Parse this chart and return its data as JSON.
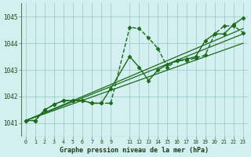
{
  "background_color": "#d4efef",
  "grid_color": "#9ecece",
  "line_color": "#1a6b1a",
  "title": "Graphe pression niveau de la mer (hPa)",
  "xlim": [
    -0.5,
    23.5
  ],
  "ylim": [
    1040.5,
    1045.5
  ],
  "yticks": [
    1041,
    1042,
    1043,
    1044,
    1045
  ],
  "xtick_positions": [
    0,
    1,
    2,
    3,
    4,
    5,
    6,
    7,
    8,
    9,
    11,
    12,
    13,
    14,
    15,
    16,
    17,
    18,
    19,
    20,
    21,
    22,
    23
  ],
  "xtick_labels": [
    "0",
    "1",
    "2",
    "3",
    "4",
    "5",
    "6",
    "7",
    "8",
    "9",
    "11",
    "12",
    "13",
    "14",
    "15",
    "16",
    "17",
    "18",
    "19",
    "20",
    "21",
    "22",
    "23"
  ],
  "series": [
    {
      "x": [
        0,
        1,
        2,
        3,
        4,
        5,
        6,
        7,
        8,
        9,
        11,
        12,
        13,
        14,
        15,
        16,
        17,
        18,
        19,
        20,
        21,
        22,
        23
      ],
      "y": [
        1041.1,
        1041.1,
        1041.5,
        1041.7,
        1041.85,
        1041.85,
        1041.85,
        1041.75,
        1041.75,
        1041.75,
        1044.6,
        1044.55,
        1044.2,
        1043.8,
        1043.1,
        1043.35,
        1043.35,
        1043.45,
        1043.55,
        1044.35,
        1044.65,
        1044.65,
        1044.4
      ],
      "linestyle": "dashed",
      "linewidth": 1.0,
      "marker": "D",
      "markersize": 2.5
    },
    {
      "x": [
        0,
        1,
        2,
        3,
        4,
        5,
        6,
        7,
        8,
        9,
        11,
        12,
        13,
        14,
        15,
        16,
        17,
        18,
        19,
        20,
        21,
        22,
        23
      ],
      "y": [
        1041.1,
        1041.1,
        1041.5,
        1041.7,
        1041.85,
        1041.85,
        1041.85,
        1041.75,
        1041.75,
        1042.3,
        1043.5,
        1043.1,
        1042.6,
        1043.0,
        1043.2,
        1043.35,
        1043.4,
        1043.5,
        1044.1,
        1044.35,
        1044.35,
        1044.7,
        1044.95
      ],
      "linestyle": "solid",
      "linewidth": 1.0,
      "marker": "D",
      "markersize": 2.5
    },
    {
      "x": [
        0,
        23
      ],
      "y": [
        1041.1,
        1044.55
      ],
      "linestyle": "solid",
      "linewidth": 0.9,
      "marker": null,
      "markersize": 0
    },
    {
      "x": [
        0,
        23
      ],
      "y": [
        1041.1,
        1044.35
      ],
      "linestyle": "solid",
      "linewidth": 0.9,
      "marker": null,
      "markersize": 0
    },
    {
      "x": [
        0,
        23
      ],
      "y": [
        1041.1,
        1044.0
      ],
      "linestyle": "solid",
      "linewidth": 0.9,
      "marker": null,
      "markersize": 0
    }
  ]
}
